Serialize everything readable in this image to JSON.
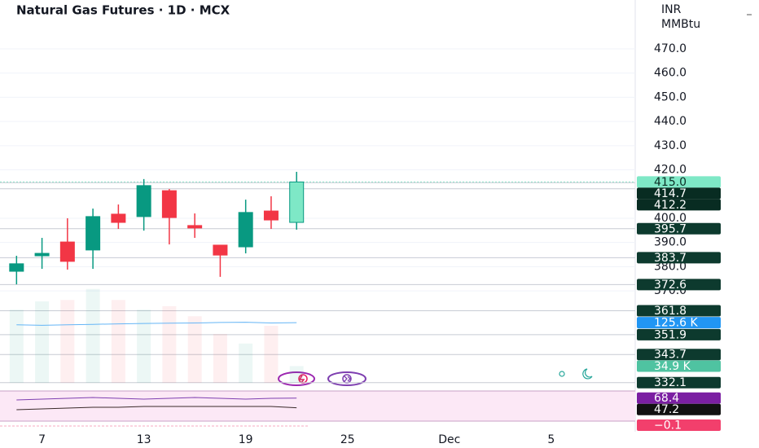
{
  "chart_data": {
    "type": "candlestick",
    "title": "Natural Gas Futures · 1D · MCX",
    "currency": "INR",
    "unit": "MMBtu",
    "x": [
      0,
      1,
      2,
      3,
      4,
      5,
      6,
      7,
      8,
      9,
      10,
      11
    ],
    "open": [
      378.1,
      384.5,
      390.2,
      386.9,
      401.7,
      400.7,
      411.4,
      397.0,
      388.9,
      388.2,
      403.0,
      398.3
    ],
    "high": [
      384.5,
      391.9,
      400.0,
      404.0,
      405.7,
      416.2,
      412.1,
      402.0,
      388.9,
      407.7,
      409.1,
      419.2
    ],
    "low": [
      372.7,
      379.1,
      378.8,
      379.1,
      395.6,
      394.9,
      389.2,
      391.9,
      375.8,
      385.5,
      395.6,
      395.3
    ],
    "close": [
      381.2,
      385.5,
      382.2,
      400.7,
      398.3,
      413.5,
      400.3,
      396.0,
      384.8,
      402.4,
      399.3,
      415.0
    ],
    "up_color": "#089981",
    "down_color": "#f23645",
    "last_color": "#7ee8c6",
    "ylim": [
      332,
      490.2
    ],
    "yticks": [
      {
        "value": 370,
        "label": "370.0"
      },
      {
        "value": 380,
        "label": "380.0"
      },
      {
        "value": 390,
        "label": "390.0"
      },
      {
        "value": 400,
        "label": "400.0"
      },
      {
        "value": 420,
        "label": "420.0"
      },
      {
        "value": 430,
        "label": "430.0"
      },
      {
        "value": 440,
        "label": "440.0"
      },
      {
        "value": 450,
        "label": "450.0"
      },
      {
        "value": 460,
        "label": "460.0"
      },
      {
        "value": 470,
        "label": "470.0"
      }
    ],
    "xlim": [
      -0.65,
      24.3
    ],
    "xticks": [
      {
        "value": 1,
        "label": "7"
      },
      {
        "value": 5,
        "label": "13"
      },
      {
        "value": 9,
        "label": "19"
      },
      {
        "value": 13,
        "label": "25"
      },
      {
        "value": 17,
        "label": "Dec"
      },
      {
        "value": 21,
        "label": "5"
      }
    ],
    "price_levels": [
      {
        "value": 415.0,
        "label": "415.0",
        "bg": "#7ee8c6",
        "fg": "#0b2e25"
      },
      {
        "value": 414.7,
        "bg": "#082c22",
        "fg": "#ffffff"
      },
      {
        "value": 412.2,
        "bg": "#082c22",
        "fg": "#ffffff"
      },
      {
        "value": 395.7,
        "bg": "#0d3a2e",
        "fg": "#ffffff"
      },
      {
        "value": 383.7,
        "bg": "#0d3a2e",
        "fg": "#ffffff"
      },
      {
        "value": 372.6,
        "bg": "#0d3a2e",
        "fg": "#ffffff"
      },
      {
        "value": 361.8,
        "bg": "#0d3a2e",
        "fg": "#ffffff"
      },
      {
        "value": 351.9,
        "bg": "#0d3a2e",
        "fg": "#ffffff"
      },
      {
        "value": 343.7,
        "bg": "#0d3a2e",
        "fg": "#ffffff"
      },
      {
        "value": 332.1,
        "bg": "#0d3a2e",
        "fg": "#ffffff"
      }
    ],
    "volume": {
      "values": [
        153000,
        170000,
        173000,
        196000,
        173000,
        153000,
        160000,
        139000,
        102000,
        82000,
        119000,
        34900
      ],
      "ma": [
        121000,
        120000,
        121000,
        122000,
        123000,
        124000,
        124500,
        125000,
        126000,
        126500,
        125000,
        125600
      ],
      "ma_color": "#64b5f6",
      "ylim": [
        0,
        340000
      ],
      "labels": [
        {
          "value": 125600,
          "label": "125.6 K",
          "bg": "#2196f3",
          "fg": "#ffffff"
        },
        {
          "value": 34900,
          "label": "34.9 K",
          "bg": "#4fc3a1",
          "fg": "#ffffff"
        }
      ]
    },
    "rsi": {
      "values": [
        64.3,
        66.0,
        67.9,
        69.6,
        67.9,
        66.0,
        67.9,
        69.6,
        67.9,
        66.0,
        67.9,
        68.4
      ],
      "ma": [
        42.9,
        44.6,
        46.4,
        48.2,
        48.2,
        50.0,
        50.0,
        50.0,
        50.0,
        50.0,
        50.0,
        47.2
      ],
      "color": "#7e3fb0",
      "ma_color": "#3a2a2a",
      "ylim": [
        0,
        100
      ],
      "labels": [
        {
          "value": 68.4,
          "bg": "#7b1fa2",
          "fg": "#ffffff"
        },
        {
          "value": 47.2,
          "bg": "#111111",
          "fg": "#ffffff"
        }
      ]
    },
    "macd": {
      "labels": [
        {
          "value": -0.1,
          "label": "−0.1",
          "bg": "#f23f6c",
          "fg": "#ffffff"
        }
      ]
    }
  }
}
